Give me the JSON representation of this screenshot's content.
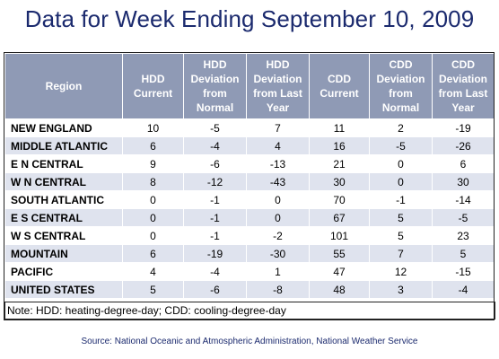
{
  "title": "Data for Week Ending September 10, 2009",
  "headers": [
    "Region",
    "HDD Current",
    "HDD Deviation from Normal",
    "HDD Deviation from Last Year",
    "CDD Current",
    "CDD Deviation from Normal",
    "CDD Deviation from Last Year"
  ],
  "rows": [
    [
      "NEW ENGLAND",
      "10",
      "-5",
      "7",
      "11",
      "2",
      "-19"
    ],
    [
      "MIDDLE ATLANTIC",
      "6",
      "-4",
      "4",
      "16",
      "-5",
      "-26"
    ],
    [
      "E N CENTRAL",
      "9",
      "-6",
      "-13",
      "21",
      "0",
      "6"
    ],
    [
      "W N CENTRAL",
      "8",
      "-12",
      "-43",
      "30",
      "0",
      "30"
    ],
    [
      "SOUTH ATLANTIC",
      "0",
      "-1",
      "0",
      "70",
      "-1",
      "-14"
    ],
    [
      "E S CENTRAL",
      "0",
      "-1",
      "0",
      "67",
      "5",
      "-5"
    ],
    [
      "W S CENTRAL",
      "0",
      "-1",
      "-2",
      "101",
      "5",
      "23"
    ],
    [
      "MOUNTAIN",
      "6",
      "-19",
      "-30",
      "55",
      "7",
      "5"
    ],
    [
      "PACIFIC",
      "4",
      "-4",
      "1",
      "47",
      "12",
      "-15"
    ],
    [
      "UNITED STATES",
      "5",
      "-6",
      "-8",
      "48",
      "3",
      "-4"
    ]
  ],
  "note": "Note: HDD: heating-degree-day; CDD: cooling-degree-day",
  "source": "Source:  National Oceanic and Atmospheric Administration, National Weather Service"
}
